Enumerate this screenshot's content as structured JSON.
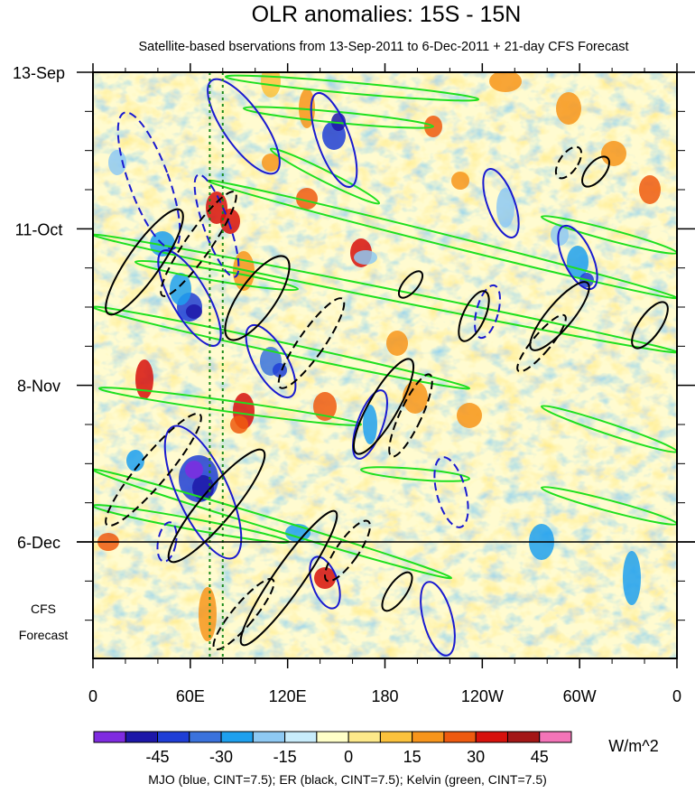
{
  "chart_data": {
    "type": "heatmap",
    "title": "OLR anomalies: 15S - 15N",
    "subtitle": "Satellite-based bservations from 13-Sep-2011 to 6-Dec-2011 + 21-day CFS Forecast",
    "x_ticks": [
      {
        "lon": 0,
        "label": "0"
      },
      {
        "lon": 60,
        "label": "60E"
      },
      {
        "lon": 120,
        "label": "120E"
      },
      {
        "lon": 180,
        "label": "180"
      },
      {
        "lon": 240,
        "label": "120W"
      },
      {
        "lon": 300,
        "label": "60W"
      },
      {
        "lon": 360,
        "label": "0"
      }
    ],
    "x_range": [
      0,
      360
    ],
    "time_range": [
      "13-Sep-2011",
      "27-Dec-2011"
    ],
    "y_ticks": [
      {
        "day": 0,
        "label": "13-Sep"
      },
      {
        "day": 28,
        "label": "11-Oct"
      },
      {
        "day": 56,
        "label": "8-Nov"
      },
      {
        "day": 84,
        "label": "6-Dec"
      }
    ],
    "observation_end_day": 84,
    "forecast_days": 21,
    "forecast_label_line1": "CFS",
    "forecast_label_line2": "Forecast",
    "reference_longitudes": [
      72,
      80
    ],
    "colorbar": {
      "unit": "W/m^2",
      "levels": [
        -52.5,
        -45,
        -37.5,
        -30,
        -22.5,
        -15,
        -7.5,
        0,
        7.5,
        15,
        22.5,
        30,
        37.5,
        45,
        52.5
      ],
      "tick_labels": [
        "-45",
        "-30",
        "-15",
        "0",
        "15",
        "30",
        "45"
      ],
      "colors": [
        "#7f2be0",
        "#1d17a8",
        "#1f3ed6",
        "#3a72dc",
        "#1ea0ee",
        "#8ec9f3",
        "#c8ecfb",
        "#ffffc8",
        "#fde98a",
        "#fbc23c",
        "#f7951b",
        "#ee5a0f",
        "#d7110c",
        "#a31616",
        "#f474b8"
      ]
    },
    "contour_legend": "MJO (blue, CINT=7.5); ER (black, CINT=7.5); Kelvin (green, CINT=7.5)",
    "mjo_color": "#1a1ad0",
    "er_color": "#000000",
    "kelvin_color": "#1fe01f"
  }
}
